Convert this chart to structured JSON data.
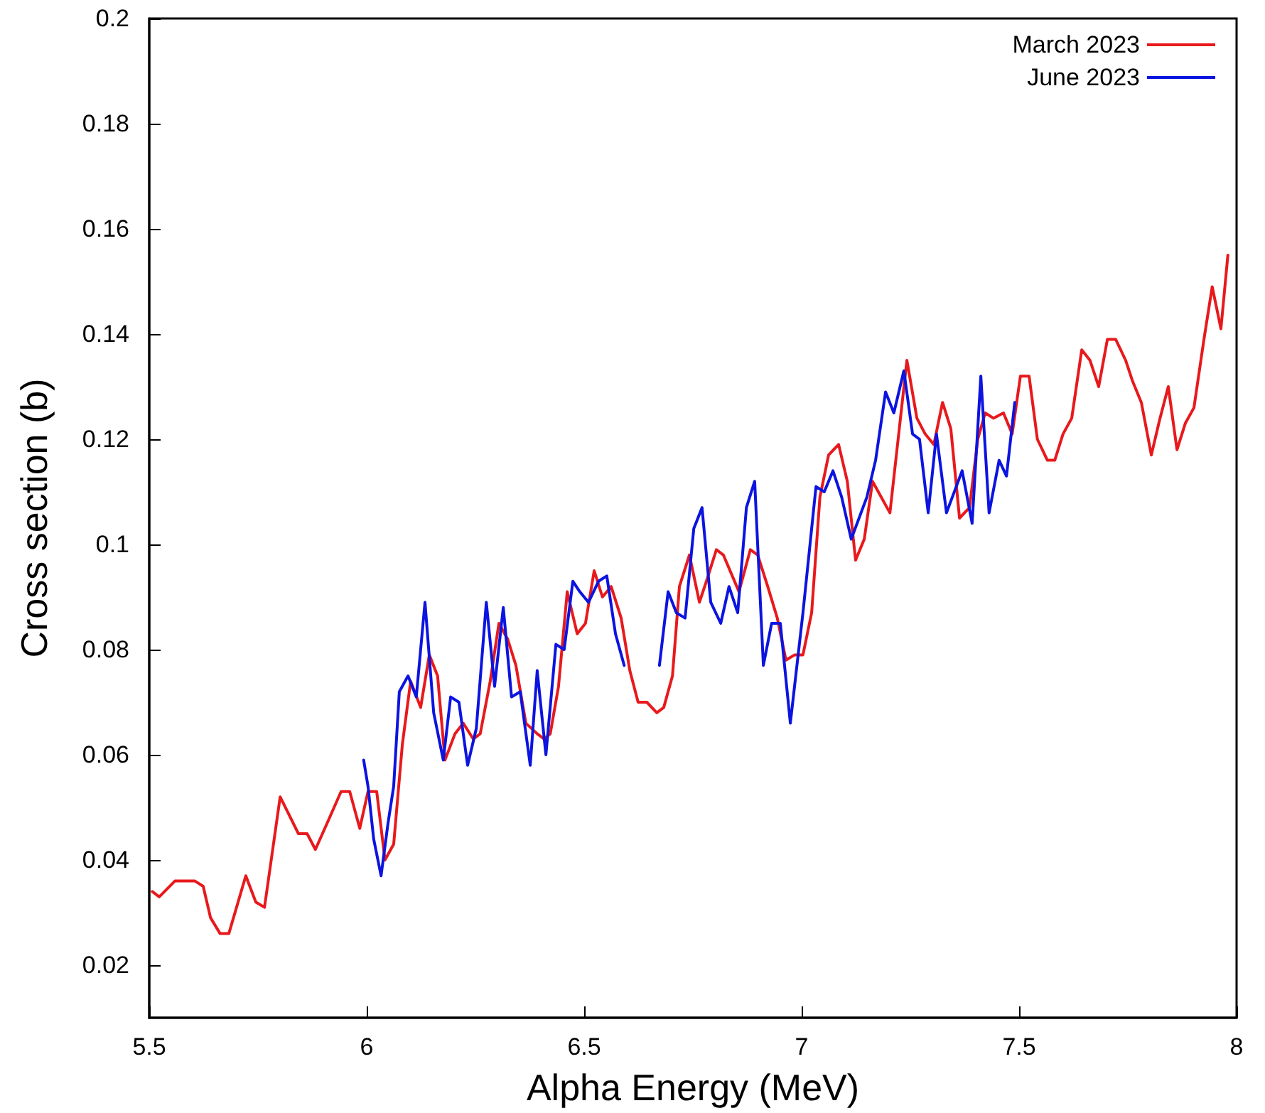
{
  "chart_data": {
    "type": "line",
    "xlabel": "Alpha Energy (MeV)",
    "ylabel": "Cross section (b)",
    "xlim": [
      5.5,
      8
    ],
    "xticks": [
      5.5,
      6,
      6.5,
      7,
      7.5,
      8
    ],
    "ylim": [
      0.01,
      0.2
    ],
    "yticks": [
      0.02,
      0.04,
      0.06,
      0.08,
      0.1,
      0.12,
      0.14,
      0.16,
      0.18,
      0.2
    ],
    "grid": false,
    "legend": "top right",
    "marker": "none",
    "line_style": "solid",
    "series": [
      {
        "name": "March 2023",
        "color": "#e8191c",
        "x": [
          5.507,
          5.523,
          5.559,
          5.605,
          5.624,
          5.641,
          5.663,
          5.683,
          5.722,
          5.745,
          5.765,
          5.801,
          5.843,
          5.863,
          5.882,
          5.909,
          5.941,
          5.961,
          5.984,
          6.003,
          6.023,
          6.042,
          6.062,
          6.082,
          6.101,
          6.124,
          6.144,
          6.163,
          6.18,
          6.203,
          6.222,
          6.245,
          6.261,
          6.284,
          6.304,
          6.324,
          6.343,
          6.366,
          6.392,
          6.408,
          6.422,
          6.441,
          6.461,
          6.484,
          6.503,
          6.523,
          6.542,
          6.562,
          6.585,
          6.605,
          6.624,
          6.644,
          6.667,
          6.683,
          6.703,
          6.719,
          6.742,
          6.765,
          6.781,
          6.804,
          6.82,
          6.856,
          6.882,
          6.899,
          6.922,
          6.944,
          6.964,
          6.984,
          7.003,
          7.023,
          7.042,
          7.062,
          7.085,
          7.105,
          7.124,
          7.144,
          7.163,
          7.203,
          7.242,
          7.265,
          7.284,
          7.304,
          7.324,
          7.343,
          7.363,
          7.386,
          7.405,
          7.422,
          7.441,
          7.464,
          7.484,
          7.503,
          7.523,
          7.542,
          7.565,
          7.582,
          7.601,
          7.621,
          7.644,
          7.663,
          7.683,
          7.703,
          7.722,
          7.745,
          7.761,
          7.781,
          7.804,
          7.824,
          7.843,
          7.863,
          7.882,
          7.902,
          7.925,
          7.944,
          7.964,
          7.98
        ],
        "values": [
          0.034,
          0.033,
          0.036,
          0.036,
          0.035,
          0.029,
          0.026,
          0.026,
          0.037,
          0.032,
          0.031,
          0.052,
          0.045,
          0.045,
          0.042,
          0.047,
          0.053,
          0.053,
          0.046,
          0.053,
          0.053,
          0.04,
          0.043,
          0.062,
          0.074,
          0.069,
          0.079,
          0.075,
          0.059,
          0.064,
          0.066,
          0.063,
          0.064,
          0.074,
          0.085,
          0.082,
          0.077,
          0.066,
          0.064,
          0.063,
          0.064,
          0.073,
          0.091,
          0.083,
          0.085,
          0.095,
          0.09,
          0.092,
          0.086,
          0.076,
          0.07,
          0.07,
          0.068,
          0.069,
          0.075,
          0.092,
          0.098,
          0.089,
          0.093,
          0.099,
          0.098,
          0.091,
          0.099,
          0.098,
          0.092,
          0.086,
          0.078,
          0.079,
          0.079,
          0.087,
          0.109,
          0.117,
          0.119,
          0.112,
          0.097,
          0.101,
          0.112,
          0.106,
          0.135,
          0.124,
          0.121,
          0.119,
          0.127,
          0.122,
          0.105,
          0.107,
          0.12,
          0.125,
          0.124,
          0.125,
          0.121,
          0.132,
          0.132,
          0.12,
          0.116,
          0.116,
          0.121,
          0.124,
          0.137,
          0.135,
          0.13,
          0.139,
          0.139,
          0.135,
          0.131,
          0.127,
          0.117,
          0.124,
          0.13,
          0.118,
          0.123,
          0.126,
          0.139,
          0.149,
          0.141,
          0.155
        ]
      },
      {
        "name": "June 2023",
        "color": "#0c14e0",
        "x": [
          5.993,
          6.003,
          6.016,
          6.033,
          6.049,
          6.062,
          6.075,
          6.095,
          6.114,
          6.134,
          6.154,
          6.176,
          6.193,
          6.212,
          6.232,
          6.252,
          6.275,
          6.294,
          6.314,
          6.333,
          6.353,
          6.376,
          6.392,
          6.412,
          6.435,
          6.454,
          6.474,
          6.49,
          6.51,
          6.533,
          6.552,
          6.572,
          6.592,
          6.63,
          6.673,
          6.693,
          6.712,
          6.732,
          6.752,
          6.771,
          6.791,
          6.814,
          6.833,
          6.853,
          6.873,
          6.892,
          6.912,
          6.931,
          6.951,
          6.974,
          7.003,
          7.033,
          7.052,
          7.072,
          7.092,
          7.114,
          7.15,
          7.17,
          7.193,
          7.212,
          7.235,
          7.255,
          7.271,
          7.291,
          7.31,
          7.333,
          7.369,
          7.392,
          7.412,
          7.431,
          7.454,
          7.471,
          7.49
        ],
        "values": [
          0.059,
          0.054,
          0.044,
          0.037,
          0.047,
          0.054,
          0.072,
          0.075,
          0.071,
          0.089,
          0.068,
          0.059,
          0.071,
          0.07,
          0.058,
          0.065,
          0.089,
          0.073,
          0.088,
          0.071,
          0.072,
          0.058,
          0.076,
          0.06,
          0.081,
          0.08,
          0.093,
          0.091,
          0.089,
          0.093,
          0.094,
          0.083,
          0.077,
          null,
          0.077,
          0.091,
          0.087,
          0.086,
          0.103,
          0.107,
          0.089,
          0.085,
          0.092,
          0.087,
          0.107,
          0.112,
          0.077,
          0.085,
          0.085,
          0.066,
          0.087,
          0.111,
          0.11,
          0.114,
          0.109,
          0.101,
          0.109,
          0.116,
          0.129,
          0.125,
          0.133,
          0.121,
          0.12,
          0.106,
          0.121,
          0.106,
          0.114,
          0.104,
          0.132,
          0.106,
          0.116,
          0.113,
          0.127
        ]
      }
    ]
  }
}
